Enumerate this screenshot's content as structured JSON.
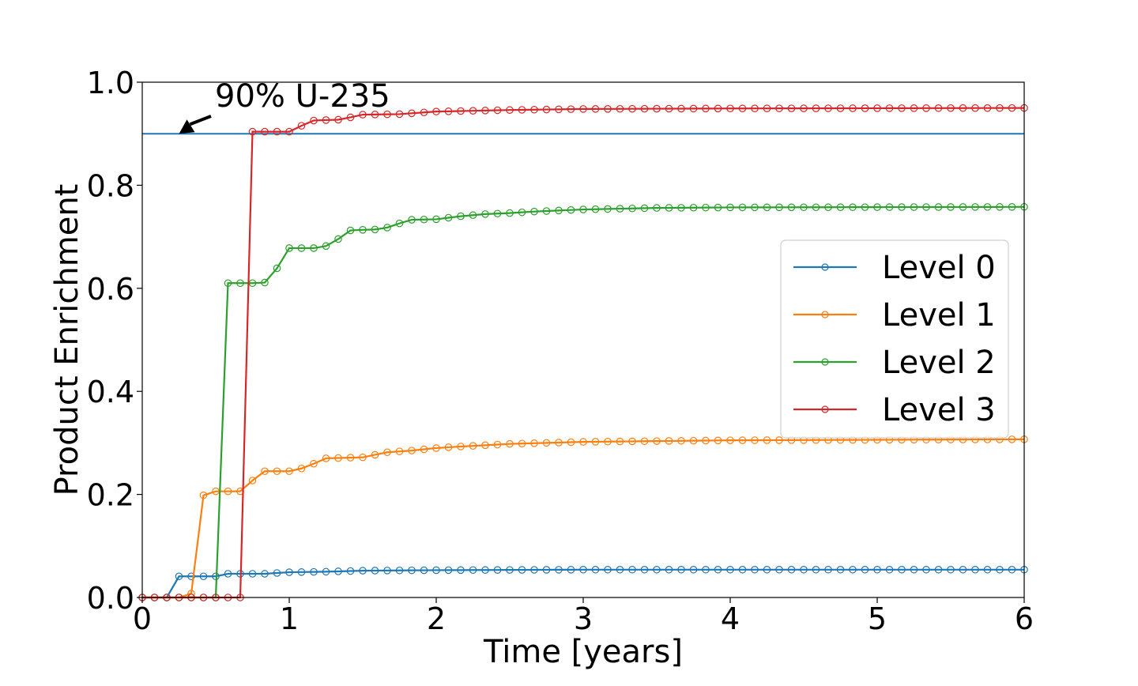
{
  "chart_data": {
    "type": "line",
    "title": "",
    "xlabel": "Time [years]",
    "ylabel": "Product Enrichment",
    "xlim": [
      0,
      6
    ],
    "ylim": [
      0,
      1.0
    ],
    "x_ticks": [
      "0",
      "1",
      "2",
      "3",
      "4",
      "5",
      "6"
    ],
    "y_ticks": [
      "0.0",
      "0.2",
      "0.4",
      "0.6",
      "0.8",
      "1.0"
    ],
    "grid": false,
    "legend_placement": "right",
    "reference_line": {
      "y": 0.9,
      "color": "#1f77b4"
    },
    "annotation": {
      "text": "90% U-235",
      "point": [
        0.25,
        0.9
      ]
    },
    "series": [
      {
        "name": "Level 0",
        "color": "#1f77b4",
        "points": [
          [
            0,
            0
          ],
          [
            0.17,
            0
          ],
          [
            0.25,
            0.041
          ],
          [
            0.5,
            0.041
          ],
          [
            0.58,
            0.046
          ],
          [
            0.83,
            0.046
          ],
          [
            1.0,
            0.049
          ],
          [
            1.25,
            0.05
          ],
          [
            1.5,
            0.052
          ],
          [
            2.0,
            0.053
          ],
          [
            3.0,
            0.054
          ],
          [
            6.0,
            0.054
          ]
        ]
      },
      {
        "name": "Level 1",
        "color": "#ff7f0e",
        "points": [
          [
            0,
            0
          ],
          [
            0.33,
            0
          ],
          [
            0.42,
            0.206
          ],
          [
            0.67,
            0.206
          ],
          [
            0.75,
            0.227
          ],
          [
            0.83,
            0.245
          ],
          [
            1.0,
            0.245
          ],
          [
            1.08,
            0.25
          ],
          [
            1.17,
            0.26
          ],
          [
            1.25,
            0.27
          ],
          [
            1.5,
            0.272
          ],
          [
            1.67,
            0.282
          ],
          [
            1.83,
            0.285
          ],
          [
            2.0,
            0.29
          ],
          [
            2.17,
            0.293
          ],
          [
            2.5,
            0.298
          ],
          [
            3.0,
            0.302
          ],
          [
            4.0,
            0.305
          ],
          [
            6.0,
            0.307
          ]
        ]
      },
      {
        "name": "Level 2",
        "color": "#2ca02c",
        "points": [
          [
            0,
            0
          ],
          [
            0.5,
            0
          ],
          [
            0.58,
            0.61
          ],
          [
            0.83,
            0.61
          ],
          [
            0.92,
            0.64
          ],
          [
            1.0,
            0.678
          ],
          [
            1.17,
            0.678
          ],
          [
            1.25,
            0.682
          ],
          [
            1.33,
            0.695
          ],
          [
            1.42,
            0.713
          ],
          [
            1.58,
            0.714
          ],
          [
            1.67,
            0.718
          ],
          [
            1.75,
            0.726
          ],
          [
            1.83,
            0.733
          ],
          [
            2.0,
            0.734
          ],
          [
            2.17,
            0.74
          ],
          [
            2.33,
            0.744
          ],
          [
            2.5,
            0.746
          ],
          [
            2.67,
            0.749
          ],
          [
            3.0,
            0.753
          ],
          [
            3.5,
            0.756
          ],
          [
            4.0,
            0.757
          ],
          [
            6.0,
            0.758
          ]
        ]
      },
      {
        "name": "Level 3",
        "color": "#d62728",
        "points": [
          [
            0,
            0
          ],
          [
            0.67,
            0
          ],
          [
            0.75,
            0.904
          ],
          [
            1.0,
            0.904
          ],
          [
            1.08,
            0.915
          ],
          [
            1.17,
            0.926
          ],
          [
            1.33,
            0.927
          ],
          [
            1.42,
            0.932
          ],
          [
            1.5,
            0.937
          ],
          [
            1.75,
            0.938
          ],
          [
            2.0,
            0.943
          ],
          [
            2.5,
            0.946
          ],
          [
            3.0,
            0.948
          ],
          [
            4.0,
            0.949
          ],
          [
            6.0,
            0.95
          ]
        ]
      }
    ]
  }
}
